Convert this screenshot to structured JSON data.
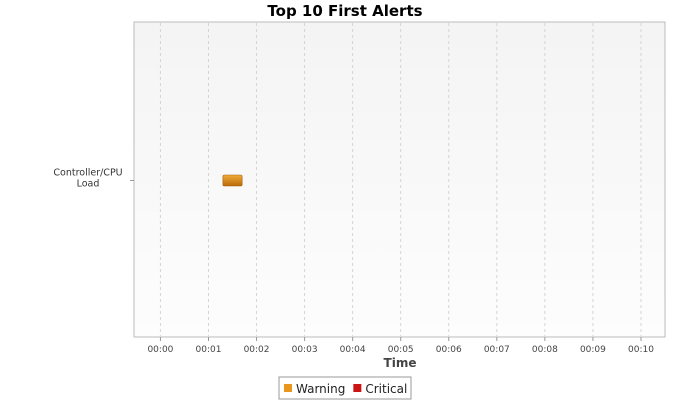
{
  "chart_data": {
    "type": "bar",
    "orientation": "horizontal",
    "title": "Top 10 First Alerts",
    "xlabel": "Time",
    "ylabel": "",
    "categories": [
      "Controller/CPU Load"
    ],
    "category_lines": [
      [
        "Controller/CPU",
        "Load"
      ]
    ],
    "x_ticks": [
      "00:00",
      "00:01",
      "00:02",
      "00:03",
      "00:04",
      "00:05",
      "00:06",
      "00:07",
      "00:08",
      "00:09",
      "00:10"
    ],
    "xlim_minutes": [
      -0.55,
      10.5
    ],
    "grid": true,
    "legend_position": "bottom-center",
    "series": [
      {
        "name": "Warning",
        "color": "#e8961e",
        "bars": [
          {
            "category": "Controller/CPU Load",
            "start_minute": 1.3,
            "end_minute": 1.7
          }
        ]
      },
      {
        "name": "Critical",
        "color": "#cc1414",
        "bars": []
      }
    ]
  }
}
